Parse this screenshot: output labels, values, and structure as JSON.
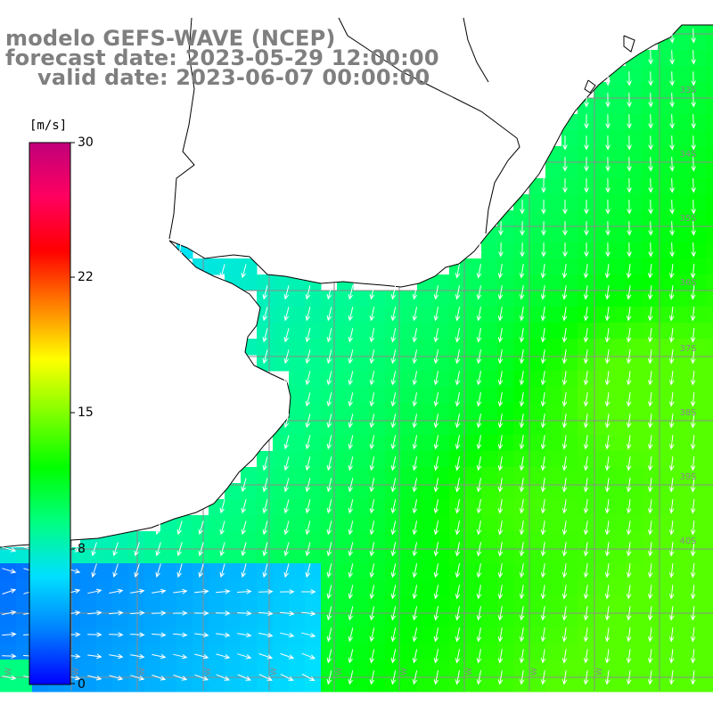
{
  "title": {
    "model": "modelo GEFS-WAVE (NCEP)",
    "forecast": "forecast date: 2023-05-29 12:00:00",
    "valid": "valid date: 2023-06-07 00:00:00"
  },
  "colorbar": {
    "unit": "[m/s]",
    "ticks": [
      "30",
      "22",
      "15",
      "8",
      "0"
    ],
    "range": [
      0,
      30
    ],
    "colors": [
      "#0000ff",
      "#0080ff",
      "#00e0ff",
      "#00ff80",
      "#00ff00",
      "#80ff00",
      "#ffff00",
      "#ff8000",
      "#ff0000",
      "#ff0060",
      "#c0007a"
    ]
  },
  "grid": {
    "lat_labels": [
      "33S",
      "34S",
      "35S",
      "36S",
      "37S",
      "38S",
      "39S",
      "40S"
    ],
    "lon_labels": [
      "W",
      "W",
      "W",
      "W",
      "W",
      "W",
      "W",
      "W",
      "W",
      "W"
    ]
  },
  "chart_data": {
    "type": "heatmap",
    "title": "modelo GEFS-WAVE (NCEP)",
    "variable": "wind speed",
    "unit": "m/s",
    "value_range": [
      0,
      30
    ],
    "arrows": "white wind direction vectors, mostly pointing south-southwest; eastward in the south-west corner",
    "background": "land white with black coastline and gray lat/lon grid"
  }
}
